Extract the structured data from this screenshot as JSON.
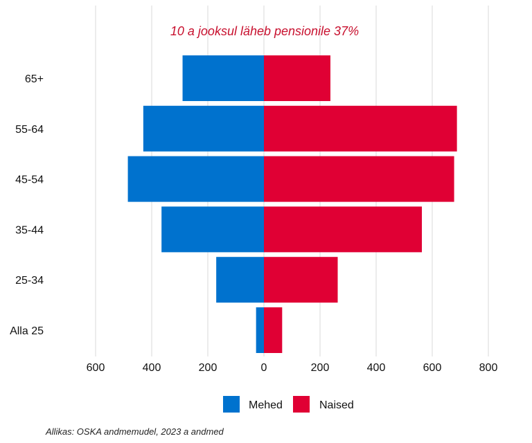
{
  "chart_data": {
    "type": "bar",
    "orientation": "horizontal",
    "layout": "population-pyramid",
    "annotation": "10 a jooksul läheb pensionile 37%",
    "categories": [
      "Alla 25",
      "25-34",
      "35-44",
      "45-54",
      "55-64",
      "65+"
    ],
    "series": [
      {
        "name": "Mehed",
        "color": "#0072CE",
        "values": [
          28,
          170,
          365,
          485,
          430,
          290
        ]
      },
      {
        "name": "Naised",
        "color": "#E00034",
        "values": [
          65,
          263,
          563,
          678,
          688,
          237
        ]
      }
    ],
    "xlim": [
      -600,
      800
    ],
    "xticks": [
      {
        "value": -600,
        "label": "600"
      },
      {
        "value": -400,
        "label": "400"
      },
      {
        "value": -200,
        "label": "200"
      },
      {
        "value": 0,
        "label": "0"
      },
      {
        "value": 200,
        "label": "200"
      },
      {
        "value": 400,
        "label": "400"
      },
      {
        "value": 600,
        "label": "600"
      },
      {
        "value": 800,
        "label": "800"
      }
    ],
    "grid": true,
    "legend_position": "bottom",
    "annotation_color": "#C8102E"
  },
  "source": "Allikas: OSKA andmemudel, 2023 a andmed"
}
